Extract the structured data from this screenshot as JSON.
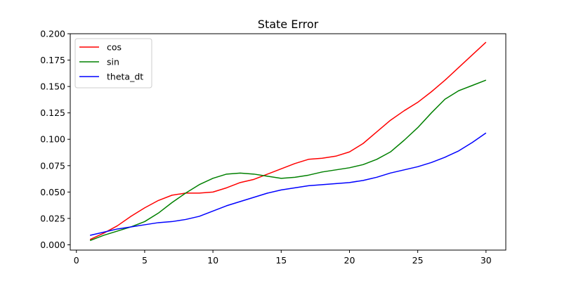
{
  "chart_data": {
    "type": "line",
    "title": "State Error",
    "xlabel": "",
    "ylabel": "",
    "xlim": [
      -0.45,
      31.45
    ],
    "ylim": [
      -0.005,
      0.2
    ],
    "x_ticks": [
      0,
      5,
      10,
      15,
      20,
      25,
      30
    ],
    "x_tick_labels": [
      "0",
      "5",
      "10",
      "15",
      "20",
      "25",
      "30"
    ],
    "y_ticks": [
      0.0,
      0.025,
      0.05,
      0.075,
      0.1,
      0.125,
      0.15,
      0.175,
      0.2
    ],
    "y_tick_labels": [
      "0.000",
      "0.025",
      "0.050",
      "0.075",
      "0.100",
      "0.125",
      "0.150",
      "0.175",
      "0.200"
    ],
    "grid": false,
    "legend_position": "top-left",
    "x": [
      1,
      2,
      3,
      4,
      5,
      6,
      7,
      8,
      9,
      10,
      11,
      12,
      13,
      14,
      15,
      16,
      17,
      18,
      19,
      20,
      21,
      22,
      23,
      24,
      25,
      26,
      27,
      28,
      29,
      30
    ],
    "series": [
      {
        "name": "cos",
        "color": "#ff0000",
        "values": [
          0.005,
          0.011,
          0.018,
          0.027,
          0.035,
          0.042,
          0.047,
          0.049,
          0.049,
          0.05,
          0.054,
          0.059,
          0.062,
          0.067,
          0.072,
          0.077,
          0.081,
          0.082,
          0.084,
          0.088,
          0.096,
          0.107,
          0.118,
          0.127,
          0.135,
          0.145,
          0.156,
          0.168,
          0.18,
          0.192
        ]
      },
      {
        "name": "sin",
        "color": "#008000",
        "values": [
          0.004,
          0.009,
          0.013,
          0.017,
          0.022,
          0.03,
          0.04,
          0.049,
          0.057,
          0.063,
          0.067,
          0.068,
          0.067,
          0.065,
          0.063,
          0.064,
          0.066,
          0.069,
          0.071,
          0.073,
          0.076,
          0.081,
          0.088,
          0.099,
          0.111,
          0.125,
          0.138,
          0.146,
          0.151,
          0.156
        ]
      },
      {
        "name": "theta_dt",
        "color": "#0000ff",
        "values": [
          0.009,
          0.012,
          0.015,
          0.017,
          0.019,
          0.021,
          0.022,
          0.024,
          0.027,
          0.032,
          0.037,
          0.041,
          0.045,
          0.049,
          0.052,
          0.054,
          0.056,
          0.057,
          0.058,
          0.059,
          0.061,
          0.064,
          0.068,
          0.071,
          0.074,
          0.078,
          0.083,
          0.089,
          0.097,
          0.106
        ]
      }
    ]
  }
}
